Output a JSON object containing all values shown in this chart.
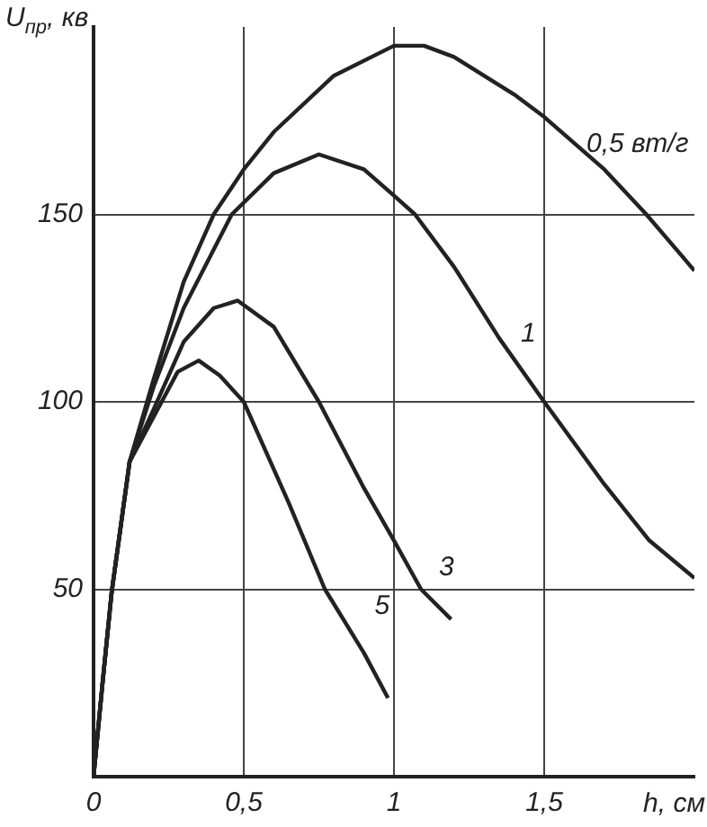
{
  "chart_data": {
    "type": "line",
    "xlabel": "h, см",
    "ylabel": "U$_{пр}$, кв",
    "xlim": [
      0,
      2
    ],
    "ylim": [
      0,
      200
    ],
    "xticks": [
      0,
      {
        "value": 0.5,
        "label": "0,5"
      },
      1,
      {
        "value": 1.5,
        "label": "1,5"
      }
    ],
    "yticks": [
      50,
      100,
      150
    ],
    "grid": true,
    "legend": false,
    "marker": "none",
    "line_style": "solid",
    "series": [
      {
        "name": "0,5 вт/г",
        "color": "#222222",
        "x": [
          0,
          0.03,
          0.06,
          0.12,
          0.2,
          0.3,
          0.4,
          0.5,
          0.6,
          0.8,
          1.0,
          1.1,
          1.2,
          1.4,
          1.5,
          1.7,
          1.84,
          2
        ],
        "values": [
          0,
          25,
          49,
          84,
          106,
          132,
          150,
          162,
          172,
          187,
          195,
          195,
          192,
          182,
          176,
          162,
          150,
          135
        ]
      },
      {
        "name": "1",
        "color": "#222222",
        "x": [
          0,
          0.03,
          0.06,
          0.12,
          0.2,
          0.3,
          0.46,
          0.6,
          0.75,
          0.9,
          1.0,
          1.07,
          1.2,
          1.35,
          1.5,
          1.7,
          1.85,
          2
        ],
        "values": [
          0,
          25,
          49,
          84,
          104,
          125,
          150,
          161,
          166,
          162,
          155,
          150,
          136,
          117,
          100,
          78,
          63,
          53
        ]
      },
      {
        "name": "3",
        "color": "#222222",
        "x": [
          0,
          0.03,
          0.06,
          0.12,
          0.2,
          0.3,
          0.4,
          0.48,
          0.6,
          0.75,
          0.9,
          1,
          1.09,
          1.19
        ],
        "values": [
          0,
          25,
          49,
          84,
          98,
          116,
          125,
          127,
          120,
          100,
          77,
          63,
          50,
          42
        ]
      },
      {
        "name": "5",
        "color": "#222222",
        "x": [
          0,
          0.03,
          0.06,
          0.12,
          0.2,
          0.28,
          0.35,
          0.42,
          0.5,
          0.65,
          0.77,
          0.9,
          0.98
        ],
        "values": [
          0,
          25,
          49,
          84,
          96,
          108,
          111,
          107,
          100,
          73,
          50,
          33,
          21
        ]
      }
    ]
  }
}
